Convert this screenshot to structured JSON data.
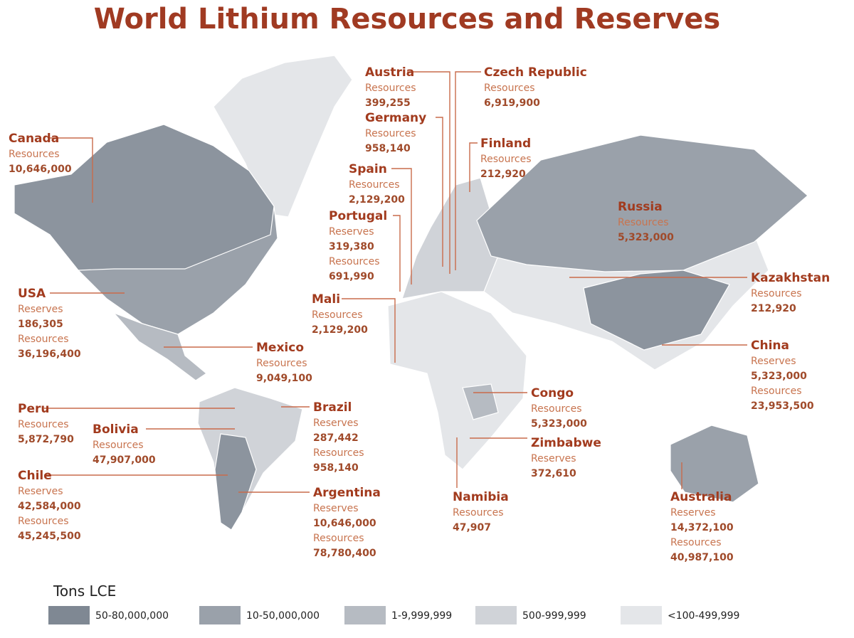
{
  "title": "World Lithium Resources and Reserves",
  "countries": [
    {
      "name": "Canada",
      "figures": [
        {
          "label": "Resources",
          "value": "10,646,000"
        }
      ]
    },
    {
      "name": "USA",
      "figures": [
        {
          "label": "Reserves",
          "value": "186,305"
        },
        {
          "label": "Resources",
          "value": "36,196,400"
        }
      ]
    },
    {
      "name": "Peru",
      "figures": [
        {
          "label": "Resources",
          "value": "5,872,790"
        }
      ]
    },
    {
      "name": "Bolivia",
      "figures": [
        {
          "label": "Resources",
          "value": "47,907,000"
        }
      ]
    },
    {
      "name": "Chile",
      "figures": [
        {
          "label": "Reserves",
          "value": "42,584,000"
        },
        {
          "label": "Resources",
          "value": "45,245,500"
        }
      ]
    },
    {
      "name": "Mexico",
      "figures": [
        {
          "label": "Resources",
          "value": "9,049,100"
        }
      ]
    },
    {
      "name": "Brazil",
      "figures": [
        {
          "label": "Reserves",
          "value": "287,442"
        },
        {
          "label": "Resources",
          "value": "958,140"
        }
      ]
    },
    {
      "name": "Argentina",
      "figures": [
        {
          "label": "Reserves",
          "value": "10,646,000"
        },
        {
          "label": "Resources",
          "value": "78,780,400"
        }
      ]
    },
    {
      "name": "Austria",
      "figures": [
        {
          "label": "Resources",
          "value": "399,255"
        }
      ]
    },
    {
      "name": "Germany",
      "figures": [
        {
          "label": "Resources",
          "value": "958,140"
        }
      ]
    },
    {
      "name": "Spain",
      "figures": [
        {
          "label": "Resources",
          "value": "2,129,200"
        }
      ]
    },
    {
      "name": "Portugal",
      "figures": [
        {
          "label": "Reserves",
          "value": "319,380"
        },
        {
          "label": "Resources",
          "value": "691,990"
        }
      ]
    },
    {
      "name": "Mali",
      "figures": [
        {
          "label": "Resources",
          "value": "2,129,200"
        }
      ]
    },
    {
      "name": "Czech Republic",
      "figures": [
        {
          "label": "Resources",
          "value": "6,919,900"
        }
      ]
    },
    {
      "name": "Finland",
      "figures": [
        {
          "label": "Resources",
          "value": "212,920"
        }
      ]
    },
    {
      "name": "Russia",
      "figures": [
        {
          "label": "Resources",
          "value": "5,323,000"
        }
      ]
    },
    {
      "name": "Kazakhstan",
      "figures": [
        {
          "label": "Resources",
          "value": "212,920"
        }
      ]
    },
    {
      "name": "China",
      "figures": [
        {
          "label": "Reserves",
          "value": "5,323,000"
        },
        {
          "label": "Resources",
          "value": "23,953,500"
        }
      ]
    },
    {
      "name": "Congo",
      "figures": [
        {
          "label": "Resources",
          "value": "5,323,000"
        }
      ]
    },
    {
      "name": "Zimbabwe",
      "figures": [
        {
          "label": "Reserves",
          "value": "372,610"
        }
      ]
    },
    {
      "name": "Namibia",
      "figures": [
        {
          "label": "Resources",
          "value": "47,907"
        }
      ]
    },
    {
      "name": "Australia",
      "figures": [
        {
          "label": "Reserves",
          "value": "14,372,100"
        },
        {
          "label": "Resources",
          "value": "40,987,100"
        }
      ]
    }
  ],
  "legend": {
    "title": "Tons LCE",
    "items": [
      {
        "label": "50-80,000,000",
        "color": "#7f8893"
      },
      {
        "label": "10-50,000,000",
        "color": "#9aa1aa"
      },
      {
        "label": "1-9,999,999",
        "color": "#b6bbc2"
      },
      {
        "label": "500-999,999",
        "color": "#d0d3d8"
      },
      {
        "label": "<100-499,999",
        "color": "#e4e6e9"
      }
    ]
  }
}
